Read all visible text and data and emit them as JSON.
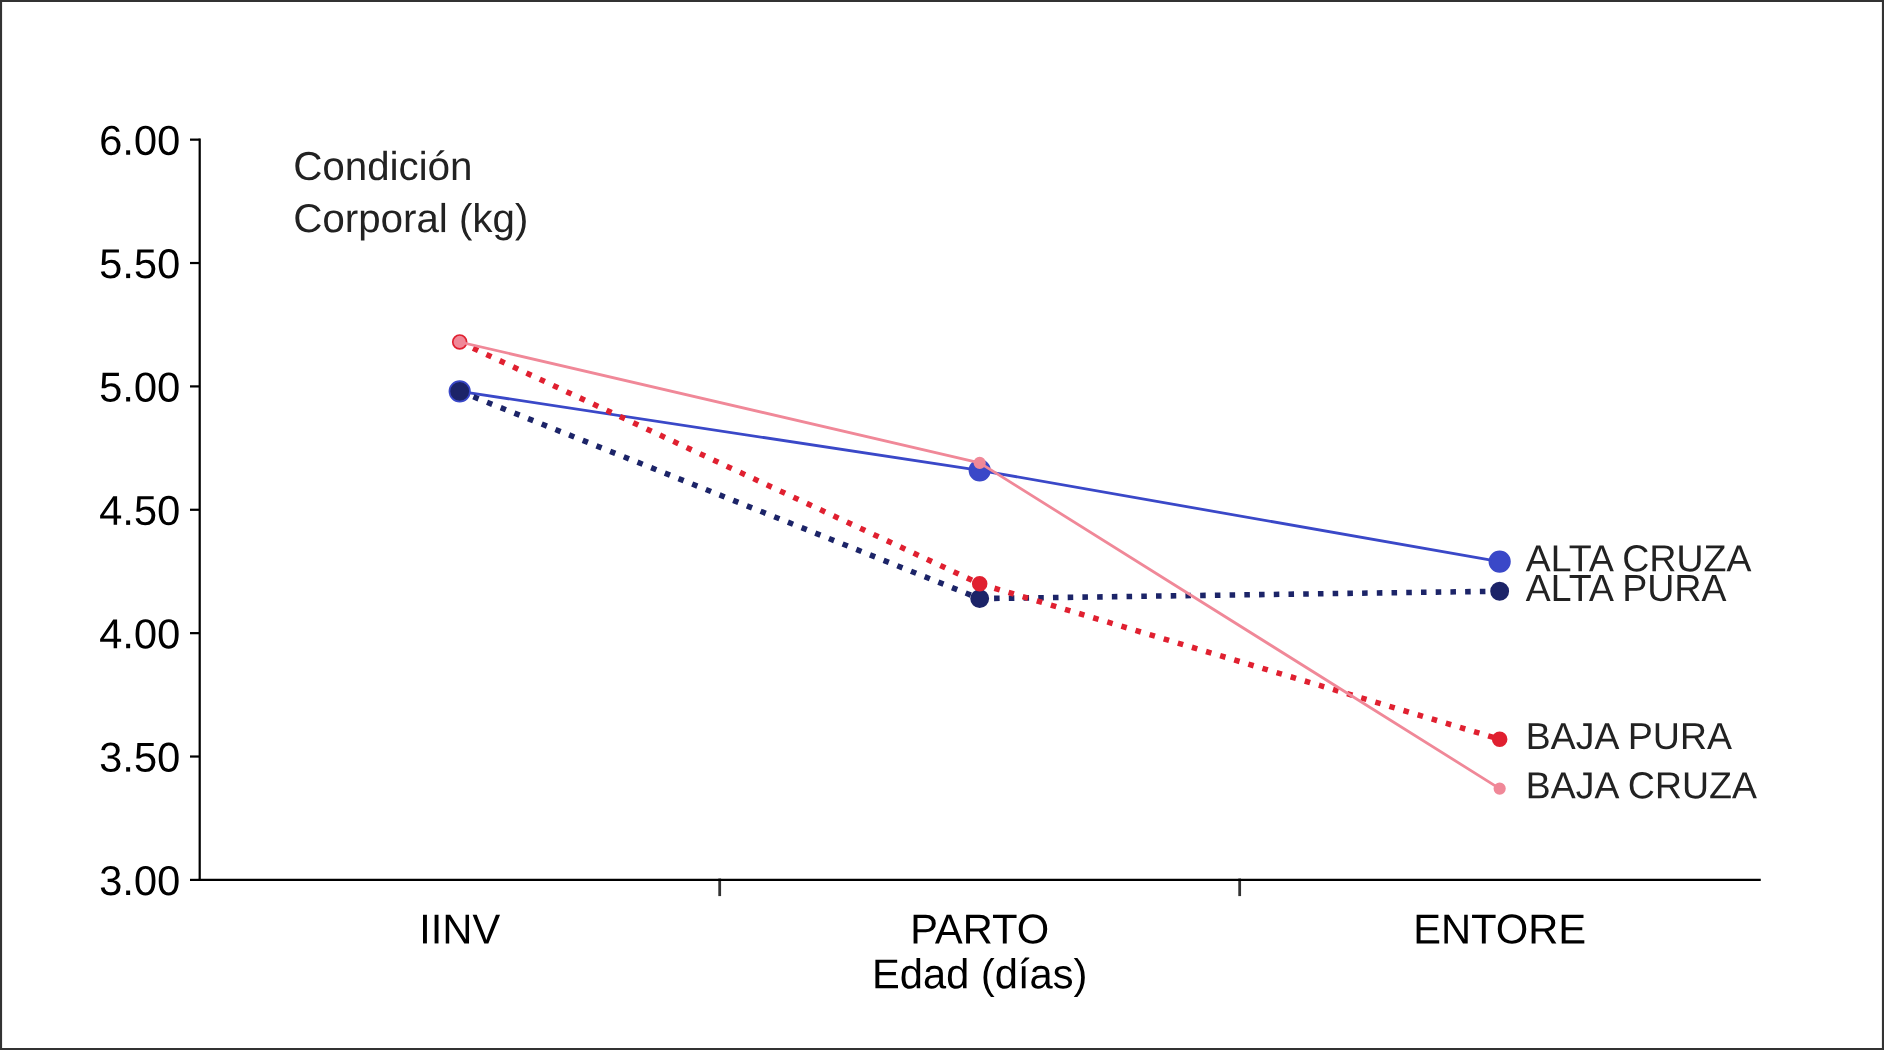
{
  "chart_data": {
    "type": "line",
    "ylabel": "Condición\nCorporal (kg)",
    "xlabel": "Edad (días)",
    "categories": [
      "IINV",
      "PARTO",
      "ENTORE"
    ],
    "ylim": [
      3,
      6
    ],
    "yticks": [
      {
        "value": 3,
        "label": "3.00"
      },
      {
        "value": 3.5,
        "label": "3.50"
      },
      {
        "value": 4,
        "label": "4.00"
      },
      {
        "value": 4.5,
        "label": "4.50"
      },
      {
        "value": 5,
        "label": "5.00"
      },
      {
        "value": 5.5,
        "label": "5.50"
      },
      {
        "value": 6,
        "label": "6.00"
      }
    ],
    "grid": false,
    "legend": false,
    "marker": "circle",
    "series": [
      {
        "name": "ALTA CRUZA",
        "color": "#3a48c8",
        "line_style": "solid",
        "values": [
          4.98,
          4.66,
          4.29
        ]
      },
      {
        "name": "ALTA PURA",
        "color": "#1c2468",
        "line_style": "dotted",
        "values": [
          4.98,
          4.14,
          4.17
        ]
      },
      {
        "name": "BAJA PURA",
        "color": "#e02030",
        "line_style": "dotted",
        "values": [
          5.18,
          4.2,
          3.57
        ]
      },
      {
        "name": "BAJA CRUZA",
        "color": "#f08898",
        "line_style": "solid",
        "values": [
          5.18,
          4.69,
          3.37
        ]
      }
    ]
  }
}
